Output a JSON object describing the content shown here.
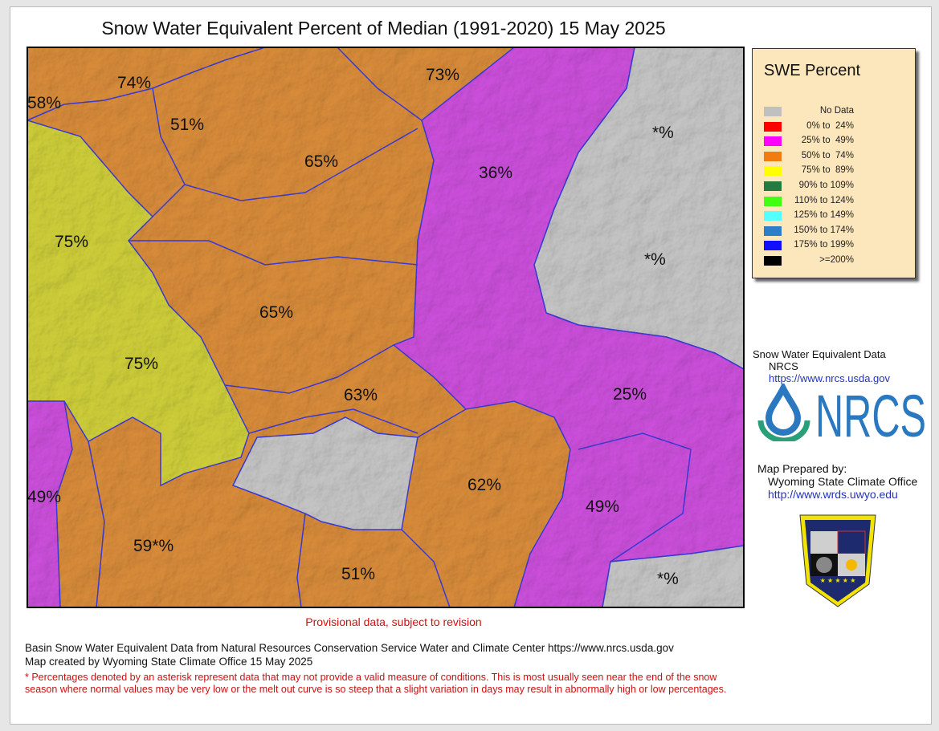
{
  "title": "Snow Water Equivalent Percent of Median (1991-2020) 15 May 2025",
  "colors": {
    "no_data": "#c8c8c8",
    "p0_24": "#ff0000",
    "p25_49": "#ff00ff",
    "p50_74": "#f08020",
    "p75_89": "#ffff00",
    "basin_boundary": "#3b3bdc"
  },
  "legend": {
    "title": "SWE Percent",
    "items": [
      {
        "label": "No Data",
        "color": "#c0c0c0"
      },
      {
        "label": "0% to  24%",
        "color": "#ff0000"
      },
      {
        "label": "25% to  49%",
        "color": "#ff00ff"
      },
      {
        "label": "50% to  74%",
        "color": "#f07d10"
      },
      {
        "label": "75% to  89%",
        "color": "#ffff00"
      },
      {
        "label": "90% to 109%",
        "color": "#247a40"
      },
      {
        "label": "110% to 124%",
        "color": "#40ff10"
      },
      {
        "label": "125% to 149%",
        "color": "#55ffff"
      },
      {
        "label": "150% to 174%",
        "color": "#2c7ec8"
      },
      {
        "label": "175% to 199%",
        "color": "#1010ff"
      },
      {
        "label": ">=200%",
        "color": "#000000"
      }
    ]
  },
  "basin_labels": [
    "74%",
    "58%",
    "51%",
    "73%",
    "65%",
    "36%",
    "*%",
    "75%",
    "*%",
    "65%",
    "75%",
    "63%",
    "25%",
    "62%",
    "49%",
    "49%",
    "59*%",
    "51%",
    "*%"
  ],
  "credits": {
    "data_heading": "Snow Water Equivalent Data",
    "data_org": "NRCS",
    "data_url": "https://www.nrcs.usda.gov",
    "nrcs_logo_text": "NRCS",
    "prepared_heading": "Map Prepared by:",
    "prepared_org": "Wyoming State Climate Office",
    "prepared_url": "http://www.wrds.uwyo.edu",
    "seal_text": "Wyoming State Climate Office"
  },
  "provisional": "Provisional data, subject to revision",
  "footer": {
    "line1": "Basin Snow Water Equivalent Data from Natural Resources Conservation Service Water and Climate Center https://www.nrcs.usda.gov",
    "line2": "Map created by Wyoming State Climate Office 15 May 2025",
    "note": "* Percentages denoted by an asterisk represent data that may not provide a valid measure of conditions.  This is most usually seen near the end of the snow season where normal values may be very low or the melt out curve is so steep that a slight variation in days may result in abnormally high or low percentages."
  }
}
